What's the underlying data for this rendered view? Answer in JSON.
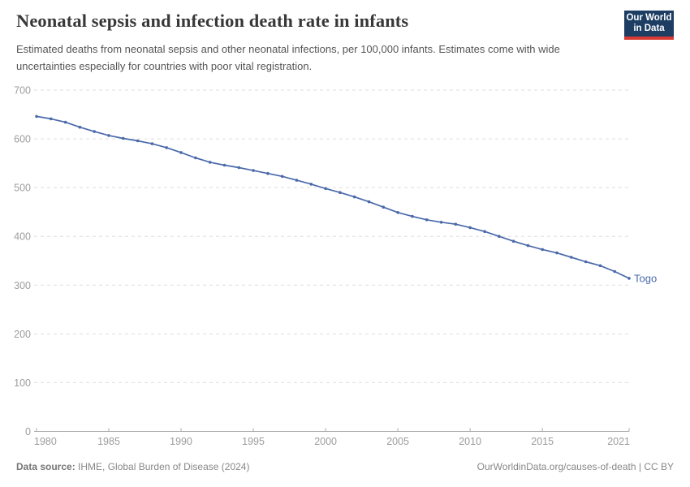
{
  "header": {
    "title": "Neonatal sepsis and infection death rate in infants",
    "subtitle": "Estimated deaths from neonatal sepsis and other neonatal infections, per 100,000 infants. Estimates come with wide uncertainties especially for countries with poor vital registration.",
    "logo": {
      "line1": "Our World",
      "line2": "in Data",
      "bg_color": "#1d3d63",
      "accent_color": "#d93a34"
    }
  },
  "chart_data": {
    "type": "line",
    "title": "Neonatal sepsis and infection death rate in infants",
    "xlabel": "",
    "ylabel": "",
    "x": [
      1980,
      1981,
      1982,
      1983,
      1984,
      1985,
      1986,
      1987,
      1988,
      1989,
      1990,
      1991,
      1992,
      1993,
      1994,
      1995,
      1996,
      1997,
      1998,
      1999,
      2000,
      2001,
      2002,
      2003,
      2004,
      2005,
      2006,
      2007,
      2008,
      2009,
      2010,
      2011,
      2012,
      2013,
      2014,
      2015,
      2016,
      2017,
      2018,
      2019,
      2020,
      2021
    ],
    "series": [
      {
        "name": "Togo",
        "color": "#4a69aa",
        "values": [
          646,
          641,
          634,
          624,
          615,
          607,
          601,
          596,
          590,
          582,
          572,
          561,
          552,
          546,
          541,
          535,
          529,
          523,
          515,
          507,
          498,
          490,
          481,
          471,
          460,
          449,
          441,
          434,
          429,
          425,
          418,
          410,
          400,
          390,
          381,
          373,
          366,
          357,
          348,
          340,
          328,
          314
        ]
      }
    ],
    "ylim": [
      0,
      700
    ],
    "yticks": [
      0,
      100,
      200,
      300,
      400,
      500,
      600,
      700
    ],
    "xticks": [
      1980,
      1985,
      1990,
      1995,
      2000,
      2005,
      2010,
      2015,
      2021
    ],
    "grid": "horizontal-dashed",
    "legend": "end-of-line-label",
    "axis_color": "#a8a8a8",
    "grid_color": "#dedede",
    "tick_label_color": "#9c9c9c"
  },
  "footer": {
    "source_prefix": "Data source:",
    "source_text": " IHME, Global Burden of Disease (2024)",
    "link_text": "OurWorldinData.org/causes-of-death | CC BY"
  }
}
